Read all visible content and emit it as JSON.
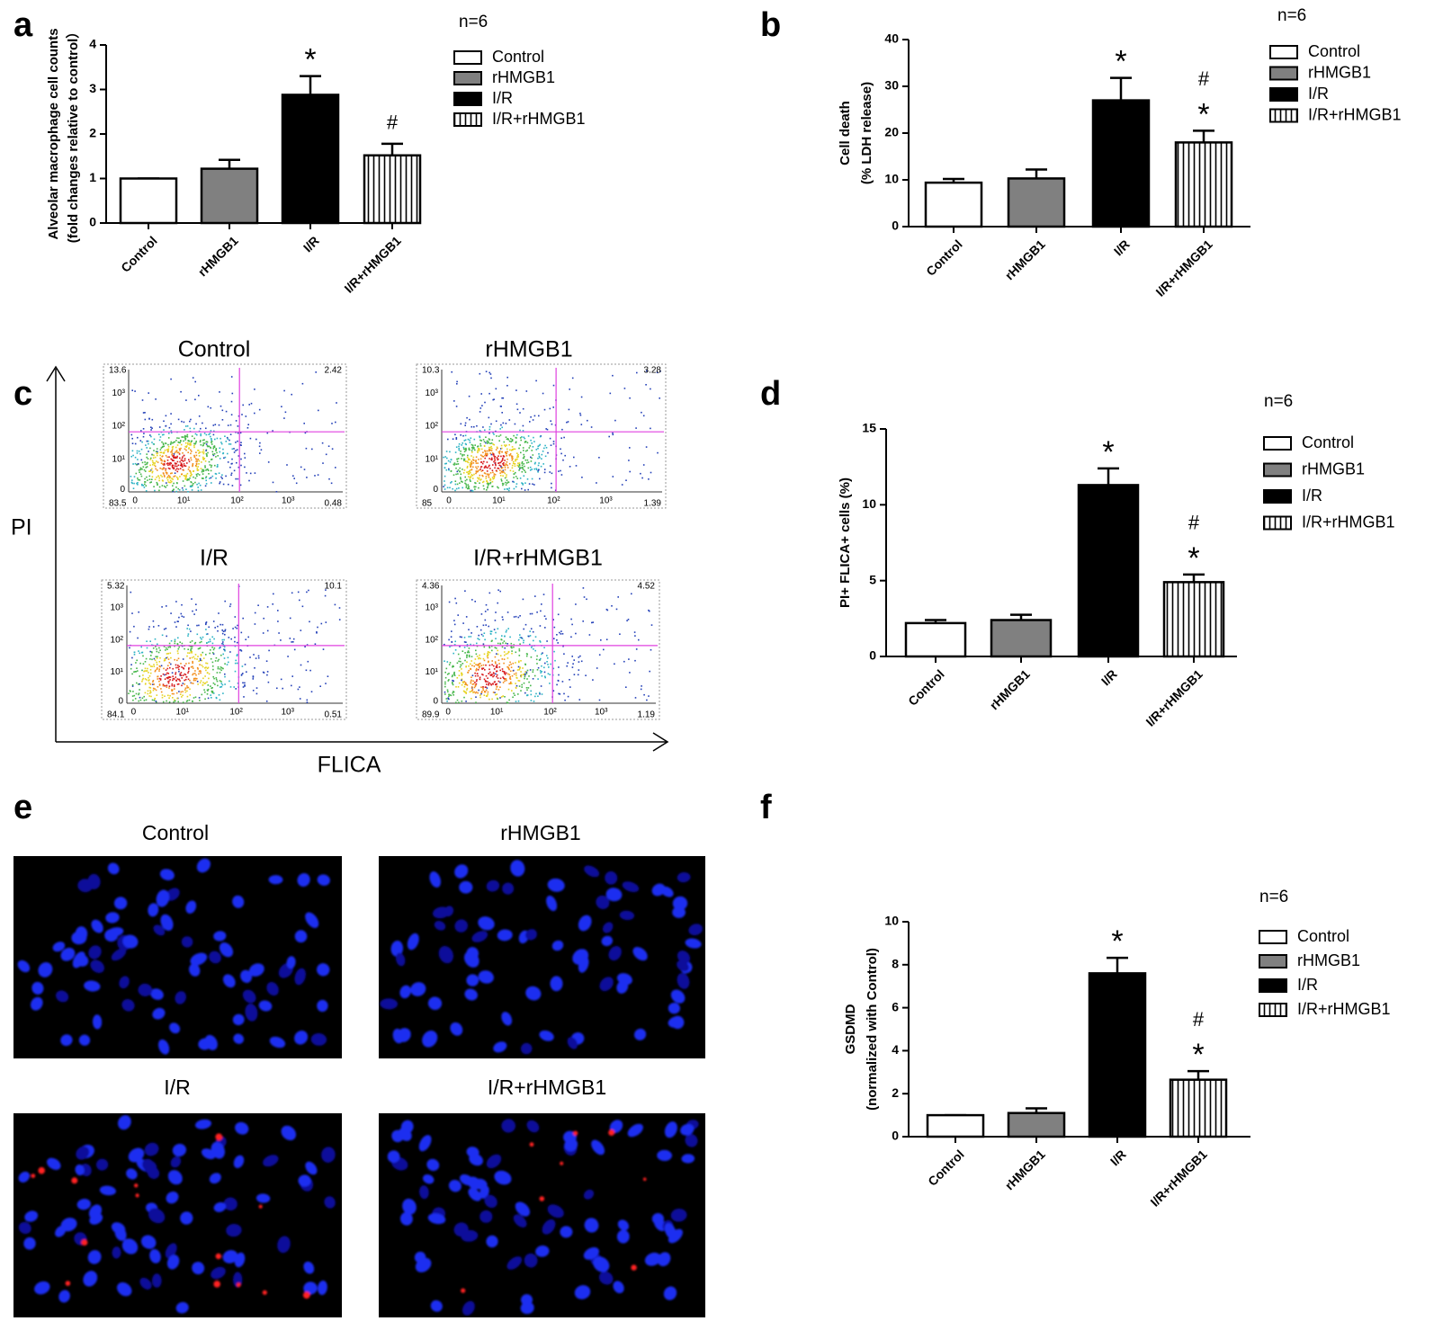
{
  "chart_data": [
    {
      "type": "bar",
      "panel": "a",
      "note": "n=6",
      "ylabel": [
        "Alveolar macrophage cell counts",
        "(fold changes relative to control）"
      ],
      "categories": [
        "Control",
        "rHMGB1",
        "I/R",
        "I/R+rHMGB1"
      ],
      "values": [
        1,
        1.22,
        2.88,
        1.52
      ],
      "errors": [
        0,
        0.2,
        0.42,
        0.26
      ],
      "annotations": [
        [],
        [],
        [
          "*"
        ],
        [
          "#"
        ]
      ],
      "colors": [
        "#ffffff",
        "#808080",
        "#000000",
        "#ffffff"
      ],
      "patterns": [
        "solid",
        "solid",
        "solid",
        "vertical-stripes"
      ],
      "ylim": [
        0,
        4
      ],
      "yticks": [
        0,
        1,
        2,
        3,
        4
      ]
    },
    {
      "type": "bar",
      "panel": "b",
      "note": "n=6",
      "ylabel": [
        "Cell death",
        "(% LDH release)"
      ],
      "categories": [
        "Control",
        "rHMGB1",
        "I/R",
        "I/R+rHMGB1"
      ],
      "values": [
        9.4,
        10.3,
        27,
        18
      ],
      "errors": [
        0.8,
        1.9,
        4.8,
        2.5
      ],
      "annotations": [
        [],
        [],
        [
          "*"
        ],
        [
          "#",
          "*"
        ]
      ],
      "colors": [
        "#ffffff",
        "#808080",
        "#000000",
        "#ffffff"
      ],
      "patterns": [
        "solid",
        "solid",
        "solid",
        "vertical-stripes"
      ],
      "ylim": [
        0,
        40
      ],
      "yticks": [
        0,
        10,
        20,
        30,
        40
      ]
    },
    {
      "type": "bar",
      "panel": "d",
      "note": "n=6",
      "ylabel": [
        "PI+ FLICA+ cells (%)"
      ],
      "categories": [
        "Control",
        "rHMGB1",
        "I/R",
        "I/R+rHMGB1"
      ],
      "values": [
        2.2,
        2.4,
        11.3,
        4.9
      ],
      "errors": [
        0.2,
        0.35,
        1.1,
        0.5
      ],
      "annotations": [
        [],
        [],
        [
          "*"
        ],
        [
          "#",
          "*"
        ]
      ],
      "colors": [
        "#ffffff",
        "#808080",
        "#000000",
        "#ffffff"
      ],
      "patterns": [
        "solid",
        "solid",
        "solid",
        "vertical-stripes"
      ],
      "ylim": [
        0,
        15
      ],
      "yticks": [
        0,
        5,
        10,
        15
      ]
    },
    {
      "type": "bar",
      "panel": "f",
      "note": "n=6",
      "ylabel": [
        "GSDMD",
        "(normalized with Control)"
      ],
      "categories": [
        "Control",
        "rHMGB1",
        "I/R",
        "I/R+rHMGB1"
      ],
      "values": [
        1,
        1.1,
        7.6,
        2.65
      ],
      "errors": [
        0,
        0.22,
        0.72,
        0.4
      ],
      "annotations": [
        [],
        [],
        [
          "*"
        ],
        [
          "#",
          "*"
        ]
      ],
      "colors": [
        "#ffffff",
        "#808080",
        "#000000",
        "#ffffff"
      ],
      "patterns": [
        "solid",
        "solid",
        "solid",
        "vertical-stripes"
      ],
      "ylim": [
        0,
        10
      ],
      "yticks": [
        0,
        2,
        4,
        6,
        8,
        10
      ]
    }
  ],
  "flow_panel": {
    "panel": "c",
    "ylabel": "PI",
    "xlabel": "FLICA",
    "ticks": [
      "0",
      "10¹",
      "10²",
      "10³"
    ],
    "plots": [
      {
        "title": "Control",
        "quadrants": [
          13.6,
          2.42,
          83.5,
          0.48
        ]
      },
      {
        "title": "rHMGB1",
        "quadrants": [
          10.3,
          3.28,
          85,
          1.39
        ]
      },
      {
        "title": "I/R",
        "quadrants": [
          5.32,
          10.1,
          84.1,
          0.51
        ]
      },
      {
        "title": "I/R+rHMGB1",
        "quadrants": [
          4.36,
          4.52,
          89.9,
          1.19
        ]
      }
    ]
  },
  "image_panel": {
    "panel": "e",
    "images": [
      {
        "title": "Control"
      },
      {
        "title": "rHMGB1"
      },
      {
        "title": "I/R"
      },
      {
        "title": "I/R+rHMGB1"
      }
    ]
  }
}
